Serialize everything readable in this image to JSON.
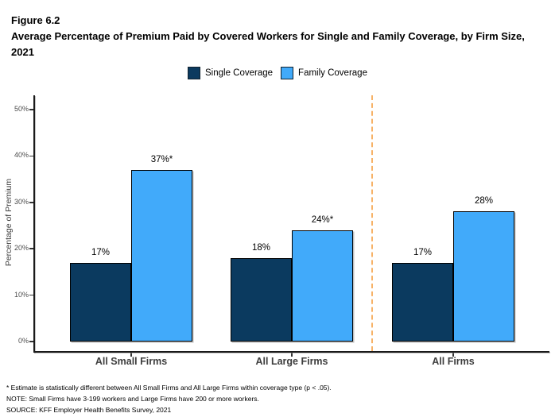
{
  "figure": {
    "label": "Figure 6.2",
    "title": "Average Percentage of Premium Paid by Covered Workers for Single and Family Coverage, by Firm Size, 2021"
  },
  "legend": [
    {
      "label": "Single Coverage",
      "color": "#0B3A5F"
    },
    {
      "label": "Family Coverage",
      "color": "#41AAFA"
    }
  ],
  "chart_data": {
    "type": "bar",
    "categories": [
      "All Small Firms",
      "All Large Firms",
      "All Firms"
    ],
    "series": [
      {
        "name": "Single Coverage",
        "color": "#0B3A5F",
        "values": [
          17,
          18,
          17
        ],
        "labels": [
          "17%",
          "18%",
          "17%"
        ]
      },
      {
        "name": "Family Coverage",
        "color": "#41AAFA",
        "values": [
          37,
          24,
          28
        ],
        "labels": [
          "37%*",
          "24%*",
          "28%"
        ]
      }
    ],
    "ylabel": "Percentage of Premium",
    "xlabel": "",
    "ylim": [
      0,
      50
    ],
    "yticks": [
      0,
      10,
      20,
      30,
      40,
      50
    ],
    "ytick_labels": [
      "0%",
      "10%",
      "20%",
      "30%",
      "40%",
      "50%"
    ],
    "grid": false,
    "legend_position": "top",
    "bar_border_color": "#000000",
    "separator_after_category": 1,
    "separator_color": "#F7B267",
    "separator_style": "dashed"
  },
  "footnotes": [
    "* Estimate is statistically different between All Small Firms and All Large Firms within coverage type (p < .05).",
    "NOTE: Small Firms have 3-199 workers and Large Firms have 200 or more workers.",
    "SOURCE: KFF Employer Health Benefits Survey, 2021"
  ]
}
